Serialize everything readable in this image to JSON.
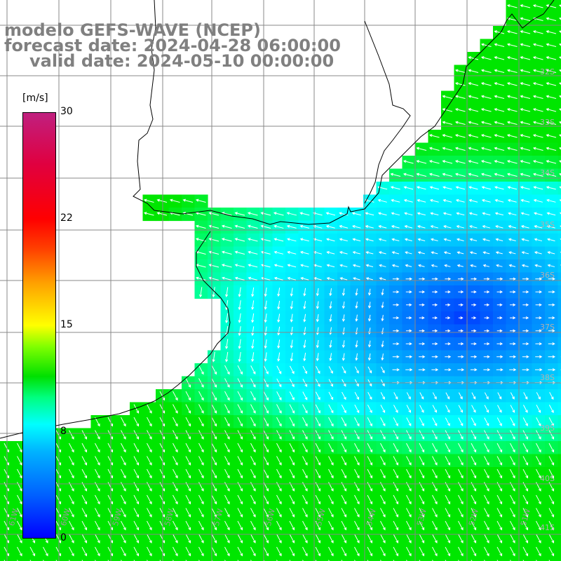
{
  "titles": {
    "line1": "modelo GEFS-WAVE (NCEP)",
    "line2": "forecast date: 2024-04-28 06:00:00",
    "line3": "valid date: 2024-05-10 00:00:00"
  },
  "colorbar": {
    "unit": "[m/s]",
    "ticks": [
      "30",
      "22",
      "15",
      "8",
      "0"
    ],
    "tick_values": [
      30,
      22,
      15,
      8,
      0
    ],
    "range": [
      0,
      30
    ],
    "colors": [
      "#0000ff",
      "#0060ff",
      "#00b0ff",
      "#00ffff",
      "#00ff80",
      "#00e000",
      "#80ff00",
      "#ffff00",
      "#ffa000",
      "#ff4000",
      "#ff0000",
      "#e00040",
      "#c0207f"
    ]
  },
  "map": {
    "land_color": "#ffffff",
    "coast_color": "#000000",
    "grid_color": "#888888",
    "vector_color": "#ffffff",
    "lat_labels": [
      "32S",
      "33S",
      "34S",
      "35S",
      "36S",
      "37S",
      "38S",
      "39S",
      "40S",
      "41S"
    ],
    "lon_labels": [
      "61W",
      "60W",
      "59W",
      "58W",
      "57W",
      "56W",
      "55W",
      "54W",
      "53W",
      "52W",
      "51W"
    ],
    "wind_field_description": "wind speed shaded in m/s with direction arrows"
  }
}
